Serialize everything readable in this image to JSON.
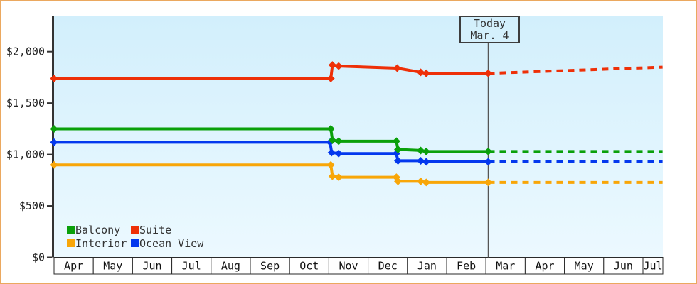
{
  "window": {
    "frame_border_color": "#eba85f",
    "background": "#ffffff"
  },
  "today_marker": {
    "title": "Today",
    "date": "Mar. 4"
  },
  "legend": {
    "items": [
      {
        "label": "Balcony",
        "color": "#0aa00a"
      },
      {
        "label": "Suite",
        "color": "#ee3008"
      },
      {
        "label": "Interior",
        "color": "#f8a608"
      },
      {
        "label": "Ocean View",
        "color": "#0338ee"
      }
    ]
  },
  "chart_data": {
    "type": "line",
    "x_axis": {
      "months": [
        "Apr",
        "May",
        "Jun",
        "Jul",
        "Aug",
        "Sep",
        "Oct",
        "Nov",
        "Dec",
        "Jan",
        "Feb",
        "Mar",
        "Apr",
        "May",
        "Jun",
        "Jul"
      ]
    },
    "y_axis": {
      "ticks": [
        {
          "label": "$0",
          "value": 0
        },
        {
          "label": "$500",
          "value": 500
        },
        {
          "label": "$1,000",
          "value": 1000
        },
        {
          "label": "$1,500",
          "value": 1500
        },
        {
          "label": "$2,000",
          "value": 2000
        }
      ],
      "range": [
        0,
        2350
      ]
    },
    "grid": false,
    "legend_position": "inside-bottom-left",
    "today_month_frac": 11.06,
    "today_line_color": "#555555",
    "plot_bg_top": "#d2effc",
    "plot_bg_bottom": "#ecf9ff",
    "series": [
      {
        "name": "Balcony",
        "color": "#0aa00a",
        "points": [
          [
            0,
            1249
          ],
          [
            7.05,
            1249
          ],
          [
            7.09,
            1139
          ],
          [
            7.25,
            1129
          ],
          [
            8.72,
            1129
          ],
          [
            8.76,
            1049
          ],
          [
            9.34,
            1039
          ],
          [
            9.48,
            1029
          ],
          [
            11.06,
            1029
          ]
        ],
        "projection": [
          [
            11.06,
            1029
          ],
          [
            15.5,
            1029
          ]
        ]
      },
      {
        "name": "Suite",
        "color": "#ee3008",
        "points": [
          [
            0,
            1739
          ],
          [
            7.05,
            1739
          ],
          [
            7.09,
            1869
          ],
          [
            7.25,
            1859
          ],
          [
            8.74,
            1839
          ],
          [
            9.34,
            1799
          ],
          [
            9.48,
            1789
          ],
          [
            11.06,
            1789
          ]
        ],
        "projection": [
          [
            11.06,
            1789
          ],
          [
            15.5,
            1849
          ]
        ]
      },
      {
        "name": "Interior",
        "color": "#f8a608",
        "points": [
          [
            0,
            899
          ],
          [
            7.05,
            899
          ],
          [
            7.09,
            789
          ],
          [
            7.25,
            779
          ],
          [
            8.72,
            779
          ],
          [
            8.76,
            739
          ],
          [
            9.34,
            739
          ],
          [
            9.48,
            729
          ],
          [
            11.06,
            729
          ]
        ],
        "projection": [
          [
            11.06,
            729
          ],
          [
            15.5,
            729
          ]
        ]
      },
      {
        "name": "Ocean View",
        "color": "#0338ee",
        "points": [
          [
            0,
            1119
          ],
          [
            7.03,
            1119
          ],
          [
            7.07,
            1019
          ],
          [
            7.25,
            1009
          ],
          [
            8.72,
            1009
          ],
          [
            8.76,
            939
          ],
          [
            9.34,
            939
          ],
          [
            9.48,
            929
          ],
          [
            11.06,
            929
          ]
        ],
        "projection": [
          [
            11.06,
            929
          ],
          [
            15.5,
            929
          ]
        ]
      }
    ]
  }
}
